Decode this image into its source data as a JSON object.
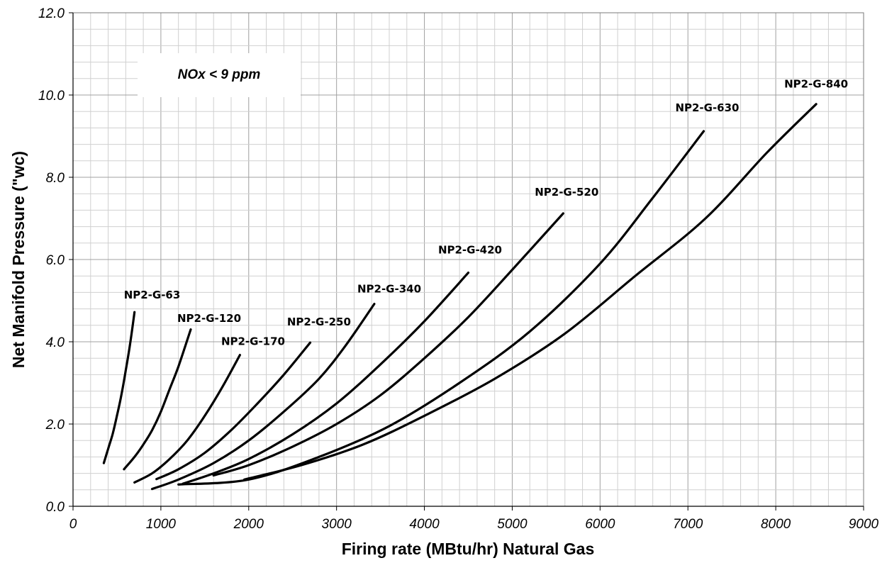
{
  "chart_data": {
    "type": "line",
    "title": "",
    "xlabel": "Firing rate (MBtu/hr) Natural Gas",
    "ylabel": "Net Manifold Pressure (\"wc)",
    "xlim": [
      0,
      9000
    ],
    "ylim": [
      0,
      12
    ],
    "x_ticks": [
      "0",
      "1000",
      "2000",
      "3000",
      "4000",
      "5000",
      "6000",
      "7000",
      "8000",
      "9000"
    ],
    "y_ticks": [
      "0.0",
      "2.0",
      "4.0",
      "6.0",
      "8.0",
      "10.0",
      "12.0"
    ],
    "x_minor_step": 200,
    "y_minor_step": 0.4,
    "grid": true,
    "annotation": "NOx < 9 ppm",
    "series": [
      {
        "name": "NP2-G-63",
        "x": [
          350,
          400,
          450,
          500,
          550,
          600,
          650,
          700
        ],
        "y": [
          1.05,
          1.4,
          1.75,
          2.2,
          2.7,
          3.3,
          3.95,
          4.72
        ]
      },
      {
        "name": "NP2-G-120",
        "x": [
          580,
          700,
          800,
          900,
          1000,
          1100,
          1200,
          1340
        ],
        "y": [
          0.9,
          1.2,
          1.5,
          1.85,
          2.3,
          2.85,
          3.4,
          4.3
        ]
      },
      {
        "name": "NP2-G-170",
        "x": [
          700,
          900,
          1100,
          1300,
          1500,
          1700,
          1900
        ],
        "y": [
          0.58,
          0.8,
          1.15,
          1.6,
          2.2,
          2.9,
          3.68
        ]
      },
      {
        "name": "NP2-G-250",
        "x": [
          950,
          1200,
          1500,
          1800,
          2100,
          2400,
          2700
        ],
        "y": [
          0.66,
          0.9,
          1.3,
          1.85,
          2.5,
          3.2,
          3.98
        ]
      },
      {
        "name": "NP2-G-340",
        "x": [
          900,
          1200,
          1600,
          2000,
          2400,
          2800,
          3100,
          3430
        ],
        "y": [
          0.42,
          0.65,
          1.05,
          1.6,
          2.3,
          3.1,
          3.9,
          4.92
        ]
      },
      {
        "name": "NP2-G-420",
        "x": [
          1250,
          1600,
          2000,
          2500,
          3000,
          3500,
          4000,
          4500
        ],
        "y": [
          0.55,
          0.8,
          1.15,
          1.75,
          2.5,
          3.45,
          4.5,
          5.68
        ]
      },
      {
        "name": "NP2-G-520",
        "x": [
          1600,
          2000,
          2500,
          3000,
          3500,
          4000,
          4500,
          5000,
          5580
        ],
        "y": [
          0.75,
          1.0,
          1.45,
          2.0,
          2.7,
          3.6,
          4.6,
          5.75,
          7.12
        ]
      },
      {
        "name": "NP2-G-630",
        "x": [
          1200,
          2000,
          2800,
          3600,
          4400,
          5200,
          6000,
          6600,
          7180
        ],
        "y": [
          0.53,
          0.65,
          1.2,
          1.95,
          3.0,
          4.25,
          5.9,
          7.5,
          9.12
        ]
      },
      {
        "name": "NP2-G-840",
        "x": [
          1950,
          2600,
          3300,
          4000,
          4800,
          5600,
          6400,
          7200,
          7900,
          8460
        ],
        "y": [
          0.65,
          1.0,
          1.5,
          2.2,
          3.1,
          4.2,
          5.6,
          7.0,
          8.6,
          9.78
        ]
      }
    ],
    "series_label_pos": [
      {
        "x": 900,
        "y": 5.05
      },
      {
        "x": 1550,
        "y": 4.48
      },
      {
        "x": 2050,
        "y": 3.92
      },
      {
        "x": 2800,
        "y": 4.4
      },
      {
        "x": 3600,
        "y": 5.2
      },
      {
        "x": 4520,
        "y": 6.15
      },
      {
        "x": 5620,
        "y": 7.55
      },
      {
        "x": 7220,
        "y": 9.6
      },
      {
        "x": 8460,
        "y": 10.18
      }
    ]
  }
}
